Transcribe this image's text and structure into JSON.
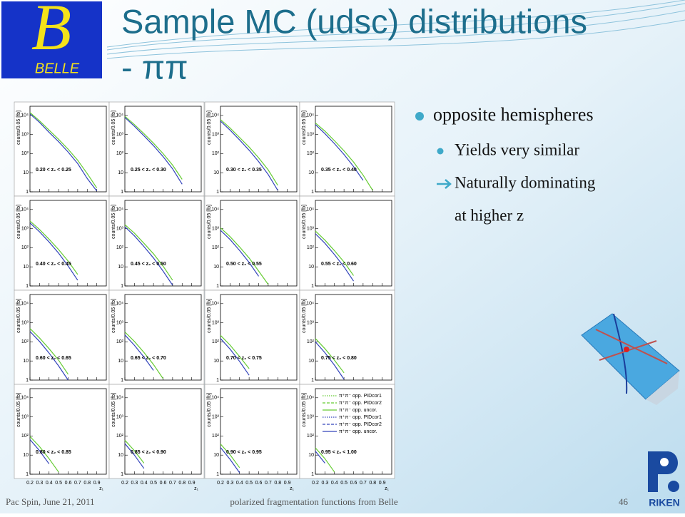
{
  "header": {
    "logo_letter": "B",
    "logo_text": "BELLE",
    "title_line1": "Sample MC (udsc) distributions",
    "title_line2": "- ππ"
  },
  "bullets": [
    {
      "text": "opposite hemispheres",
      "level": 1
    },
    {
      "text": "Yields very similar",
      "level": 2
    },
    {
      "text": "Naturally dominating",
      "level": 2,
      "arrow": true
    },
    {
      "text": "at higher z",
      "level": 2,
      "continuation": true
    }
  ],
  "footer": {
    "left": "Pac Spin, June 21, 2011",
    "center": "polarized fragmentation functions from Belle",
    "page": "46",
    "riken": "RIKEN"
  },
  "chart_data": {
    "type": "line",
    "log_y": true,
    "y_label": "counts/0.05 [fb]",
    "x_label": "z₁",
    "x": [
      0.2,
      0.3,
      0.4,
      0.5,
      0.6,
      0.7,
      0.8,
      0.9
    ],
    "xlim": [
      0.2,
      1.0
    ],
    "xticks": [
      0.2,
      0.3,
      0.4,
      0.5,
      0.6,
      0.7,
      0.8,
      0.9
    ],
    "ylim": [
      1,
      30000
    ],
    "yticks": [
      1,
      10,
      {
        "value": 100,
        "label": "10²"
      },
      {
        "value": 1000,
        "label": "10³"
      },
      {
        "value": 10000,
        "label": "10⁴"
      }
    ],
    "legend": [
      {
        "name": "π⁺π⁻ opp. PIDcor1",
        "color": "#66cc33",
        "dash": "dotted"
      },
      {
        "name": "π⁺π⁻ opp. PIDcor2",
        "color": "#66cc33",
        "dash": "dashed"
      },
      {
        "name": "π⁺π⁻ opp. uncor.",
        "color": "#66cc33",
        "dash": "solid"
      },
      {
        "name": "π⁺π⁻ opp. PIDcor1",
        "color": "#3344bb",
        "dash": "dotted"
      },
      {
        "name": "π⁺π⁻ opp. PIDcor2",
        "color": "#3344bb",
        "dash": "dashed"
      },
      {
        "name": "π⁺π⁻ opp. uncor.",
        "color": "#3344bb",
        "dash": "solid"
      }
    ],
    "panels": [
      {
        "label": "0.20 < z₂ < 0.25",
        "series": [
          {
            "color": "#66cc33",
            "values": [
              14000,
              5200,
              1700,
              560,
              170,
              45,
              9,
              1.6
            ]
          },
          {
            "color": "#3344bb",
            "values": [
              12000,
              4300,
              1300,
              420,
              120,
              30,
              5,
              1.1
            ]
          }
        ]
      },
      {
        "label": "0.25 < z₂ < 0.30",
        "series": [
          {
            "color": "#66cc33",
            "values": [
              9000,
              3300,
              1100,
              350,
              100,
              25,
              4.5,
              null
            ]
          },
          {
            "color": "#3344bb",
            "values": [
              7800,
              2700,
              850,
              260,
              70,
              16,
              2.5,
              null
            ]
          }
        ]
      },
      {
        "label": "0.30 < z₂ < 0.35",
        "series": [
          {
            "color": "#66cc33",
            "values": [
              6000,
              2200,
              700,
              220,
              60,
              14,
              2.2,
              null
            ]
          },
          {
            "color": "#3344bb",
            "values": [
              5000,
              1700,
              520,
              150,
              38,
              8,
              1.2,
              null
            ]
          }
        ]
      },
      {
        "label": "0.35 < z₂ < 0.40",
        "series": [
          {
            "color": "#66cc33",
            "values": [
              4000,
              1500,
              470,
              140,
              36,
              7.5,
              1.2,
              null
            ]
          },
          {
            "color": "#3344bb",
            "values": [
              3300,
              1100,
              330,
              90,
              21,
              4,
              null,
              null
            ]
          }
        ]
      },
      {
        "label": "0.40 < z₂ < 0.45",
        "series": [
          {
            "color": "#66cc33",
            "values": [
              2500,
              900,
              280,
              80,
              20,
              4,
              null,
              null
            ]
          },
          {
            "color": "#3344bb",
            "values": [
              2000,
              680,
              200,
              52,
              11,
              2,
              null,
              null
            ]
          }
        ]
      },
      {
        "label": "0.45 < z₂ < 0.50",
        "series": [
          {
            "color": "#66cc33",
            "values": [
              1600,
              580,
              170,
              48,
              11,
              2,
              null,
              null
            ]
          },
          {
            "color": "#3344bb",
            "values": [
              1250,
              420,
              115,
              29,
              6,
              1.1,
              null,
              null
            ]
          }
        ]
      },
      {
        "label": "0.50 < z₂ < 0.55",
        "series": [
          {
            "color": "#66cc33",
            "values": [
              1100,
              380,
              110,
              29,
              6,
              1.2,
              null,
              null
            ]
          },
          {
            "color": "#3344bb",
            "values": [
              820,
              270,
              72,
              17,
              3.2,
              null,
              null,
              null
            ]
          }
        ]
      },
      {
        "label": "0.55 < z₂ < 0.60",
        "series": [
          {
            "color": "#66cc33",
            "values": [
              750,
              250,
              70,
              18,
              3.5,
              null,
              null,
              null
            ]
          },
          {
            "color": "#3344bb",
            "values": [
              540,
              170,
              44,
              10,
              1.8,
              null,
              null,
              null
            ]
          }
        ]
      },
      {
        "label": "0.60 < z₂ < 0.65",
        "series": [
          {
            "color": "#66cc33",
            "values": [
              500,
              160,
              44,
              11,
              2,
              null,
              null,
              null
            ]
          },
          {
            "color": "#3344bb",
            "values": [
              350,
              105,
              26,
              5.5,
              1,
              null,
              null,
              null
            ]
          }
        ]
      },
      {
        "label": "0.65 < z₂ < 0.70",
        "series": [
          {
            "color": "#66cc33",
            "values": [
              330,
              105,
              28,
              6.5,
              1.2,
              null,
              null,
              null
            ]
          },
          {
            "color": "#3344bb",
            "values": [
              230,
              66,
              16,
              3.2,
              null,
              null,
              null,
              null
            ]
          }
        ]
      },
      {
        "label": "0.70 < z₂ < 0.75",
        "series": [
          {
            "color": "#66cc33",
            "values": [
              220,
              68,
              17,
              4,
              null,
              null,
              null,
              null
            ]
          },
          {
            "color": "#3344bb",
            "values": [
              150,
              42,
              9.5,
              1.8,
              null,
              null,
              null,
              null
            ]
          }
        ]
      },
      {
        "label": "0.75 < z₂ < 0.80",
        "series": [
          {
            "color": "#66cc33",
            "values": [
              150,
              44,
              11,
              2.4,
              null,
              null,
              null,
              null
            ]
          },
          {
            "color": "#3344bb",
            "values": [
              100,
              27,
              6,
              1.1,
              null,
              null,
              null,
              null
            ]
          }
        ]
      },
      {
        "label": "0.80 < z₂ < 0.85",
        "series": [
          {
            "color": "#66cc33",
            "values": [
              95,
              28,
              6.5,
              1.3,
              null,
              null,
              null,
              null
            ]
          },
          {
            "color": "#3344bb",
            "values": [
              65,
              17,
              3.5,
              null,
              null,
              null,
              null,
              null
            ]
          }
        ]
      },
      {
        "label": "0.85 < z₂ < 0.90",
        "series": [
          {
            "color": "#66cc33",
            "values": [
              60,
              17,
              3.8,
              null,
              null,
              null,
              null,
              null
            ]
          },
          {
            "color": "#3344bb",
            "values": [
              40,
              10,
              2,
              null,
              null,
              null,
              null,
              null
            ]
          }
        ]
      },
      {
        "label": "0.90 < z₂ < 0.95",
        "series": [
          {
            "color": "#66cc33",
            "values": [
              38,
              10.5,
              2.2,
              null,
              null,
              null,
              null,
              null
            ]
          },
          {
            "color": "#3344bb",
            "values": [
              25,
              6,
              1.2,
              null,
              null,
              null,
              null,
              null
            ]
          }
        ]
      },
      {
        "label": "0.95 < z₂ < 1.00",
        "series": [
          {
            "color": "#66cc33",
            "values": [
              24,
              6.5,
              1.3,
              null,
              null,
              null,
              null,
              null
            ]
          },
          {
            "color": "#3344bb",
            "values": [
              16,
              3.8,
              null,
              null,
              null,
              null,
              null,
              null
            ]
          }
        ]
      }
    ]
  }
}
